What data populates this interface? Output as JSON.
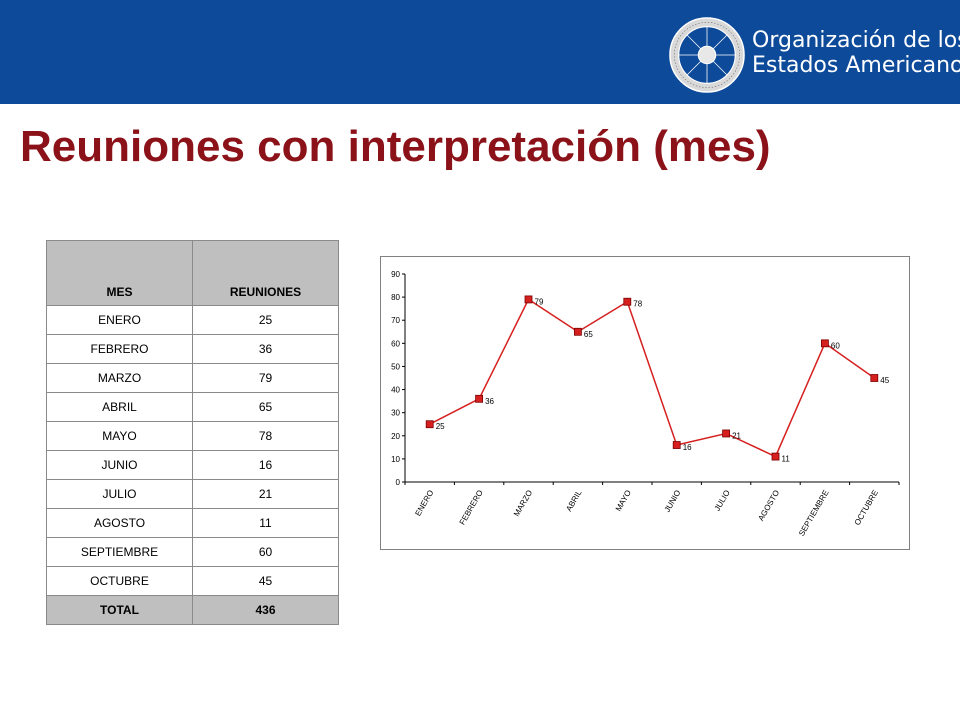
{
  "header": {
    "org_line1": "Organización de los",
    "org_line2": "Estados Americanos"
  },
  "title": "Reuniones con interpretación (mes)",
  "table": {
    "headers": [
      "MES",
      "REUNIONES"
    ],
    "rows": [
      [
        "ENERO",
        "25"
      ],
      [
        "FEBRERO",
        "36"
      ],
      [
        "MARZO",
        "79"
      ],
      [
        "ABRIL",
        "65"
      ],
      [
        "MAYO",
        "78"
      ],
      [
        "JUNIO",
        "16"
      ],
      [
        "JULIO",
        "21"
      ],
      [
        "AGOSTO",
        "11"
      ],
      [
        "SEPTIEMBRE",
        "60"
      ],
      [
        "OCTUBRE",
        "45"
      ]
    ],
    "total": [
      "TOTAL",
      "436"
    ]
  },
  "chart_data": {
    "type": "line",
    "title": "",
    "xlabel": "",
    "ylabel": "",
    "categories": [
      "ENERO",
      "FEBRERO",
      "MARZO",
      "ABRIL",
      "MAYO",
      "JUNIO",
      "JULIO",
      "AGOSTO",
      "SEPTIEMBRE",
      "OCTUBRE"
    ],
    "series": [
      {
        "values": [
          25,
          36,
          79,
          65,
          78,
          16,
          21,
          11,
          60,
          45
        ],
        "color": "#d62020",
        "marker": "square"
      }
    ],
    "ylim": [
      0,
      90
    ],
    "yticks": [
      0,
      10,
      20,
      30,
      40,
      50,
      60,
      70,
      80,
      90
    ],
    "grid": false,
    "legend": "none",
    "data_labels": true
  },
  "colors": {
    "header_blue": "#0d4a9a",
    "title_red": "#8a1218",
    "line_red": "#d62020",
    "table_header_gray": "#bfbfbf"
  }
}
